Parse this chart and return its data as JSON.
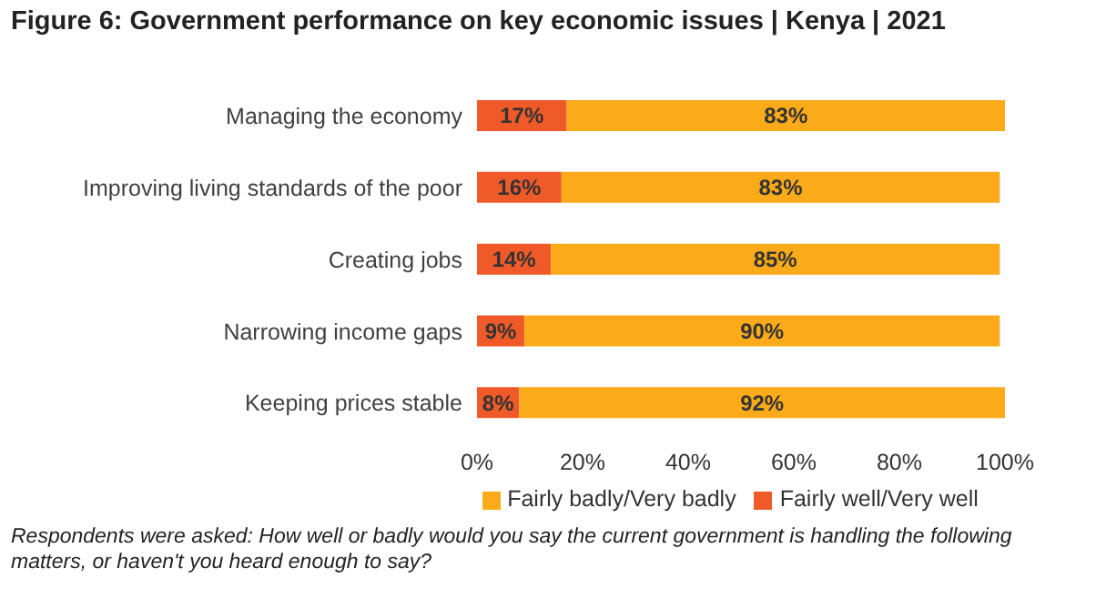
{
  "chart_data": {
    "type": "bar",
    "orientation": "horizontal",
    "stacked": true,
    "title": "Figure 6: Government performance on key economic issues | Kenya | 2021",
    "categories": [
      "Managing the economy",
      "Improving living standards of the poor",
      "Creating jobs",
      "Narrowing income gaps",
      "Keeping prices stable"
    ],
    "series": [
      {
        "name": "Fairly well/Very well",
        "color": "#f05a28",
        "values": [
          17,
          16,
          14,
          9,
          8
        ],
        "value_labels": [
          "17%",
          "16%",
          "14%",
          "9%",
          "8%"
        ]
      },
      {
        "name": "Fairly badly/Very badly",
        "color": "#fbaa19",
        "values": [
          83,
          83,
          85,
          90,
          92
        ],
        "value_labels": [
          "83%",
          "83%",
          "85%",
          "90%",
          "92%"
        ]
      }
    ],
    "xlim": [
      0,
      100
    ],
    "xticks": [
      {
        "value": 0,
        "label": "0%"
      },
      {
        "value": 20,
        "label": "20%"
      },
      {
        "value": 40,
        "label": "40%"
      },
      {
        "value": 60,
        "label": "60%"
      },
      {
        "value": 80,
        "label": "80%"
      },
      {
        "value": 100,
        "label": "100%"
      }
    ],
    "grid": false,
    "legend": "bottom",
    "annotations": [
      "Respondents were asked: How well or badly would you say the current government is handling the following matters, or haven't you heard enough to say?"
    ]
  }
}
